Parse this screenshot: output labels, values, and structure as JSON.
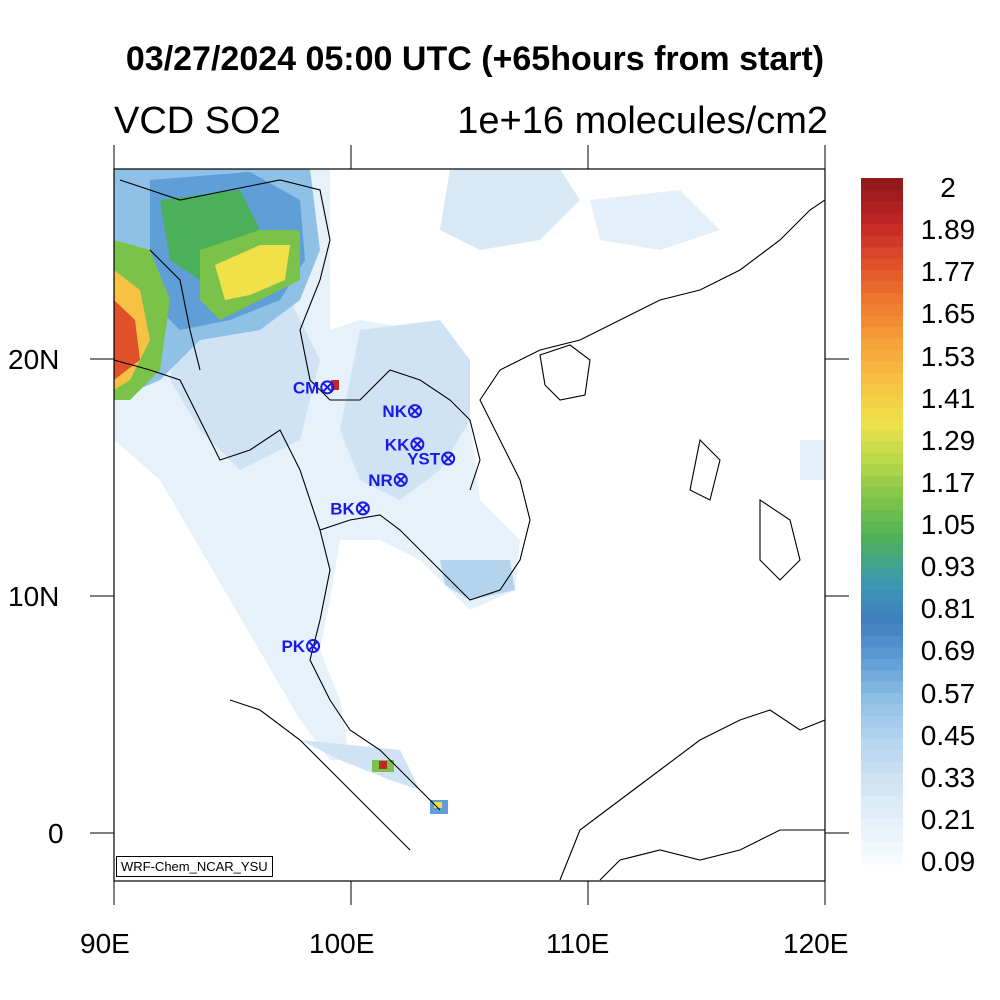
{
  "title": "03/27/2024 05:00 UTC (+65hours from start)",
  "left_string": "VCD SO2",
  "right_string": "1e+16 molecules/cm2",
  "model_tag": "WRF-Chem_NCAR_YSU",
  "colorbar": {
    "labels": [
      "2",
      "1.89",
      "1.77",
      "1.65",
      "1.53",
      "1.41",
      "1.29",
      "1.17",
      "1.05",
      "0.93",
      "0.81",
      "0.69",
      "0.57",
      "0.45",
      "0.33",
      "0.21",
      "0.09"
    ],
    "colors_low_to_high": [
      "#f7fbff",
      "#e3eff9",
      "#cfe3f4",
      "#b4d4ee",
      "#8fc0e6",
      "#5f9ed6",
      "#3f7fc0",
      "#3d99b0",
      "#4bb05a",
      "#7bc24a",
      "#b7d84a",
      "#f0e14a",
      "#f7c143",
      "#f6a23a",
      "#ef7a2f",
      "#e0502a",
      "#c32624",
      "#931a1a"
    ]
  },
  "map": {
    "lon_range": [
      90,
      120
    ],
    "lat_range": [
      -2,
      28
    ],
    "x_tick_labels": [
      "90E",
      "100E",
      "110E",
      "120E"
    ],
    "y_tick_labels": [
      "20N",
      "10N",
      "0"
    ]
  },
  "stations": [
    {
      "name": "CM",
      "lon": 99.0,
      "lat": 18.8
    },
    {
      "name": "NK",
      "lon": 102.7,
      "lat": 17.8
    },
    {
      "name": "KK",
      "lon": 102.8,
      "lat": 16.4
    },
    {
      "name": "YST",
      "lon": 104.1,
      "lat": 15.8
    },
    {
      "name": "NR",
      "lon": 102.1,
      "lat": 14.9
    },
    {
      "name": "BK",
      "lon": 100.5,
      "lat": 13.7
    },
    {
      "name": "PK",
      "lon": 98.4,
      "lat": 7.9
    }
  ]
}
